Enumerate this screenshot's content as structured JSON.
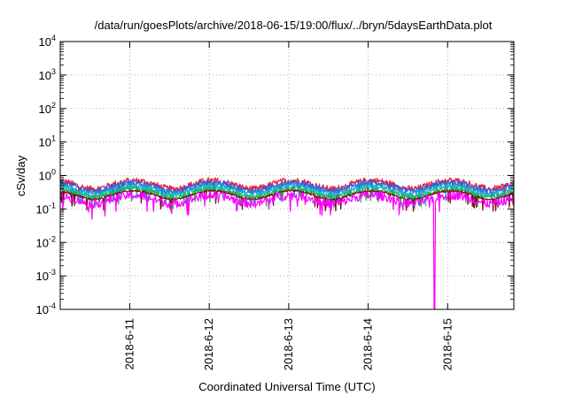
{
  "chart_data": {
    "type": "line",
    "title": "/data/run/goesPlots/archive/2018-06-15/19:00/flux/../bryn/5daysEarthData.plot",
    "xlabel": "Coordinated Universal Time (UTC)",
    "ylabel": "cSv/day",
    "yscale": "log",
    "ylim": [
      0.0001,
      10000
    ],
    "y_ticks": [
      {
        "base": "10",
        "exp": "-4"
      },
      {
        "base": "10",
        "exp": "-3"
      },
      {
        "base": "10",
        "exp": "-2"
      },
      {
        "base": "10",
        "exp": "-1"
      },
      {
        "base": "10",
        "exp": "0"
      },
      {
        "base": "10",
        "exp": "1"
      },
      {
        "base": "10",
        "exp": "2"
      },
      {
        "base": "10",
        "exp": "3"
      },
      {
        "base": "10",
        "exp": "4"
      }
    ],
    "xlim": [
      "2018-06-10T03:00",
      "2018-06-15T20:00"
    ],
    "x_ticks": [
      {
        "label": "2018-6-11",
        "date": "2018-06-11T00:00"
      },
      {
        "label": "2018-6-12",
        "date": "2018-06-12T00:00"
      },
      {
        "label": "2018-6-13",
        "date": "2018-06-13T00:00"
      },
      {
        "label": "2018-6-14",
        "date": "2018-06-14T00:00"
      },
      {
        "label": "2018-6-15",
        "date": "2018-06-15T00:00"
      }
    ],
    "grid": true,
    "series": [
      {
        "color": "#e8203a",
        "level": 0.55,
        "amplitude": 0.22
      },
      {
        "color": "#3f56d6",
        "level": 0.48,
        "amplitude": 0.2
      },
      {
        "color": "#1c8fe0",
        "level": 0.42,
        "amplitude": 0.18
      },
      {
        "color": "#18c2c2",
        "level": 0.36,
        "amplitude": 0.16
      },
      {
        "color": "#1fb34a",
        "level": 0.31,
        "amplitude": 0.14
      },
      {
        "color": "#7a0a0a",
        "level": 0.27,
        "amplitude": 0.06
      },
      {
        "color": "#ff00ff",
        "level": 0.2,
        "amplitude": 0.3,
        "min_dip": {
          "date": "2018-06-14T20:00",
          "value": 0.0001
        }
      }
    ]
  }
}
